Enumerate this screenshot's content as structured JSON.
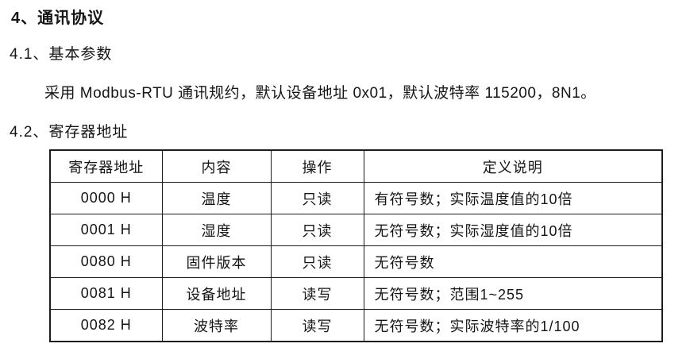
{
  "page": {
    "title": "4、通讯协议",
    "section_basic_params": "4.1、基本参数",
    "paragraph": "采用 Modbus-RTU 通讯规约，默认设备地址 0x01，默认波特率 115200，8N1。",
    "section_registers": "4.2、寄存器地址"
  },
  "table": {
    "headers": [
      "寄存器地址",
      "内容",
      "操作",
      "定义说明"
    ],
    "rows": [
      {
        "address": "0000 H",
        "content": "温度",
        "operation": "只读",
        "definition": "有符号数；实际温度值的10倍"
      },
      {
        "address": "0001 H",
        "content": "湿度",
        "operation": "只读",
        "definition": "无符号数；实际湿度值的10倍"
      },
      {
        "address": "0080 H",
        "content": "固件版本",
        "operation": "只读",
        "definition": "无符号数"
      },
      {
        "address": "0081 H",
        "content": "设备地址",
        "operation": "读写",
        "definition": "无符号数；范围1~255"
      },
      {
        "address": "0082 H",
        "content": "波特率",
        "operation": "读写",
        "definition": "无符号数；实际波特率的1/100"
      }
    ]
  }
}
